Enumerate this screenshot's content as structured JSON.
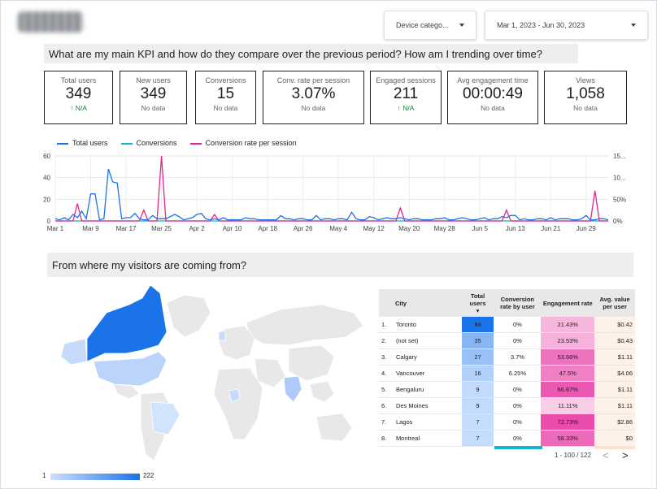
{
  "header": {
    "logo_alt": "nvidia",
    "device_filter": "Device catego...",
    "date_range": "Mar 1, 2023 - Jun 30, 2023"
  },
  "sections": {
    "kpi_question": "What are my main KPI and how do they compare over the previous period? How am I trending over time?",
    "visitors_question": "From where my visitors are coming from?"
  },
  "kpis": [
    {
      "label": "Total users",
      "value": "349",
      "sub": "↑ N/A",
      "green": true
    },
    {
      "label": "New users",
      "value": "349",
      "sub": "No data",
      "green": false
    },
    {
      "label": "Conversions",
      "value": "15",
      "sub": "No data",
      "green": false
    },
    {
      "label": "Conv. rate per session",
      "value": "3.07%",
      "sub": "No data",
      "green": false
    },
    {
      "label": "Engaged sessions",
      "value": "211",
      "sub": "↑ N/A",
      "green": true
    },
    {
      "label": "Avg engagement time",
      "value": "00:00:49",
      "sub": "No data",
      "green": false
    },
    {
      "label": "Views",
      "value": "1,058",
      "sub": "No data",
      "green": false
    }
  ],
  "chart_data": {
    "type": "line",
    "legend": [
      "Total users",
      "Conversions",
      "Conversion rate per session"
    ],
    "colors": {
      "total_users": "#1a73e8",
      "conversions": "#12b5cb",
      "conv_rate": "#e52592"
    },
    "left_axis": {
      "ticks": [
        "0",
        "20",
        "40",
        "60"
      ],
      "ylim": [
        0,
        60
      ]
    },
    "right_axis": {
      "ticks": [
        "0%",
        "50%",
        "10...",
        "15..."
      ]
    },
    "x_tick_labels": [
      "Mar 1",
      "Mar 9",
      "Mar 17",
      "Mar 25",
      "Apr 2",
      "Apr 10",
      "Apr 18",
      "Apr 26",
      "May 4",
      "May 12",
      "May 20",
      "May 28",
      "Jun 5",
      "Jun 13",
      "Jun 21",
      "Jun 29"
    ],
    "total_users": [
      2,
      1,
      3,
      1,
      6,
      3,
      9,
      2,
      25,
      25,
      1,
      2,
      48,
      36,
      35,
      2,
      3,
      3,
      7,
      2,
      1,
      1,
      5,
      2,
      2,
      2,
      4,
      6,
      4,
      1,
      2,
      3,
      6,
      7,
      2,
      1,
      2,
      1,
      3,
      1,
      1,
      1,
      1,
      3,
      2,
      2,
      1,
      1,
      1,
      1,
      1,
      5,
      2,
      2,
      1,
      2,
      2,
      1,
      1,
      5,
      1,
      2,
      2,
      1,
      2,
      2,
      1,
      8,
      2,
      1,
      1,
      4,
      3,
      1,
      2,
      3,
      2,
      2,
      3,
      2,
      1,
      2,
      2,
      1,
      1,
      1,
      2,
      2,
      3,
      1,
      1,
      2,
      3,
      2,
      1,
      1,
      2,
      3,
      1,
      2,
      2,
      4,
      3,
      5,
      5,
      1,
      2,
      1,
      1,
      2,
      2,
      1,
      3,
      1,
      2,
      2,
      2,
      1,
      1,
      2,
      5,
      1,
      1,
      2,
      2,
      1
    ],
    "conversions": [
      0,
      0,
      0,
      0,
      0,
      0,
      0,
      0,
      0,
      0,
      0,
      0,
      0,
      0,
      0,
      0,
      0,
      0,
      0,
      0,
      0,
      0,
      0,
      0,
      0,
      0,
      0,
      0,
      0,
      0,
      0,
      0,
      0,
      0,
      0,
      0,
      0,
      0,
      0,
      0,
      0,
      0,
      0,
      0,
      0,
      0,
      0,
      0,
      0,
      0,
      0,
      0,
      0,
      0,
      0,
      0,
      0,
      0,
      0,
      0,
      0,
      0,
      0,
      0,
      0,
      0,
      0,
      0,
      0,
      0,
      0,
      0,
      0,
      0,
      0,
      0,
      0,
      0,
      0,
      0,
      0,
      0,
      0,
      0,
      0,
      0,
      0,
      0,
      0,
      0,
      0,
      0,
      0,
      0,
      0,
      0,
      0,
      0,
      0,
      0,
      0,
      0,
      0,
      0,
      0,
      0,
      0,
      0,
      0,
      0,
      0,
      0,
      0,
      0,
      0,
      0,
      0,
      0,
      0,
      0,
      0,
      0,
      0,
      0,
      0,
      0
    ],
    "conv_rate_pct": [
      0,
      0,
      0,
      0,
      0,
      40,
      0,
      0,
      0,
      0,
      0,
      0,
      0,
      0,
      0,
      0,
      0,
      0,
      0,
      0,
      25,
      0,
      0,
      0,
      150,
      0,
      0,
      0,
      0,
      0,
      0,
      0,
      0,
      0,
      0,
      0,
      15,
      0,
      0,
      0,
      0,
      0,
      0,
      0,
      0,
      0,
      0,
      0,
      0,
      0,
      0,
      0,
      0,
      0,
      0,
      0,
      0,
      0,
      0,
      0,
      0,
      0,
      0,
      0,
      0,
      0,
      0,
      0,
      0,
      0,
      0,
      0,
      0,
      0,
      0,
      0,
      0,
      0,
      30,
      0,
      0,
      0,
      0,
      0,
      0,
      0,
      0,
      0,
      0,
      0,
      0,
      0,
      0,
      0,
      0,
      0,
      0,
      0,
      0,
      0,
      0,
      0,
      25,
      0,
      0,
      0,
      0,
      0,
      0,
      0,
      0,
      0,
      0,
      0,
      0,
      0,
      0,
      0,
      0,
      0,
      0,
      0,
      70,
      0,
      0,
      0
    ]
  },
  "map": {
    "scale_min": "1",
    "scale_max": "222"
  },
  "table": {
    "headers": [
      "City",
      "Total users",
      "Conversion rate by user",
      "Engagement rate",
      "Avg. value per user"
    ],
    "rows": [
      {
        "n": "1.",
        "city": "Toronto",
        "users": "84",
        "conv": "0%",
        "eng": "21.43%",
        "avg": "$0.42"
      },
      {
        "n": "2.",
        "city": "(not set)",
        "users": "35",
        "conv": "0%",
        "eng": "23.53%",
        "avg": "$0.43"
      },
      {
        "n": "3.",
        "city": "Calgary",
        "users": "27",
        "conv": "3.7%",
        "eng": "53.66%",
        "avg": "$1.11"
      },
      {
        "n": "4.",
        "city": "Vancouver",
        "users": "16",
        "conv": "6.25%",
        "eng": "47.5%",
        "avg": "$4.06"
      },
      {
        "n": "5.",
        "city": "Bengaluru",
        "users": "9",
        "conv": "0%",
        "eng": "66.67%",
        "avg": "$1.11"
      },
      {
        "n": "6.",
        "city": "Des Moines",
        "users": "9",
        "conv": "0%",
        "eng": "11.11%",
        "avg": "$1.11"
      },
      {
        "n": "7.",
        "city": "Lagos",
        "users": "7",
        "conv": "0%",
        "eng": "72.73%",
        "avg": "$2.86"
      },
      {
        "n": "8.",
        "city": "Montreal",
        "users": "7",
        "conv": "0%",
        "eng": "58.33%",
        "avg": "$0"
      }
    ],
    "pagination": "1 - 100 / 122",
    "prev": "<",
    "next": ">"
  }
}
